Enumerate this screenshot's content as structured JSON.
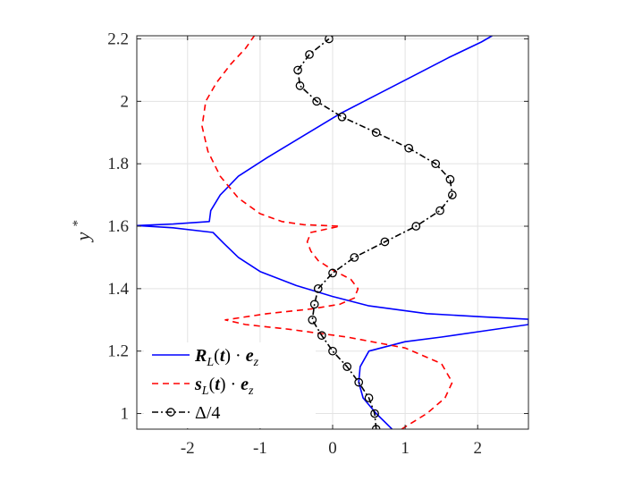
{
  "chart_data": {
    "type": "line",
    "title": "",
    "xlabel": "",
    "ylabel": "y*",
    "xlim": [
      -2.7,
      2.7
    ],
    "ylim": [
      0.95,
      2.21
    ],
    "xticks": [
      -2,
      -1,
      0,
      1,
      2
    ],
    "yticks": [
      1,
      1.2,
      1.4,
      1.6,
      1.8,
      2,
      2.2
    ],
    "xtick_labels": [
      "-2",
      "-1",
      "0",
      "1",
      "2"
    ],
    "ytick_labels": [
      "1",
      "1.2",
      "1.4",
      "1.6",
      "1.8",
      "2",
      "2.2"
    ],
    "grid": true,
    "legend_position": "bottom-left",
    "series": [
      {
        "name": "R_L(t) · e_z",
        "color": "#0000ff",
        "style": "solid",
        "points": [
          [
            0.82,
            0.95
          ],
          [
            0.6,
            1.0
          ],
          [
            0.42,
            1.05
          ],
          [
            0.36,
            1.1
          ],
          [
            0.38,
            1.15
          ],
          [
            0.5,
            1.2
          ],
          [
            1.0,
            1.23
          ],
          [
            1.5,
            1.245
          ],
          [
            2.1,
            1.265
          ],
          [
            2.7,
            1.285
          ],
          [
            2.7,
            1.302
          ],
          [
            2.05,
            1.31
          ],
          [
            1.3,
            1.32
          ],
          [
            0.5,
            1.345
          ],
          [
            0.0,
            1.375
          ],
          [
            -0.5,
            1.41
          ],
          [
            -1.0,
            1.455
          ],
          [
            -1.3,
            1.5
          ],
          [
            -1.5,
            1.545
          ],
          [
            -1.65,
            1.58
          ],
          [
            -2.2,
            1.595
          ],
          [
            -2.7,
            1.602
          ],
          [
            -2.2,
            1.607
          ],
          [
            -1.7,
            1.615
          ],
          [
            -1.68,
            1.65
          ],
          [
            -1.55,
            1.7
          ],
          [
            -1.3,
            1.76
          ],
          [
            -0.9,
            1.82
          ],
          [
            -0.4,
            1.89
          ],
          [
            0.1,
            1.96
          ],
          [
            0.6,
            2.02
          ],
          [
            1.1,
            2.08
          ],
          [
            1.6,
            2.14
          ],
          [
            2.05,
            2.19
          ],
          [
            2.2,
            2.21
          ]
        ]
      },
      {
        "name": "s_L(t) · e_z",
        "color": "#ff0000",
        "style": "dashed",
        "points": [
          [
            0.95,
            0.95
          ],
          [
            1.3,
            1.0
          ],
          [
            1.55,
            1.05
          ],
          [
            1.65,
            1.1
          ],
          [
            1.5,
            1.16
          ],
          [
            1.0,
            1.21
          ],
          [
            0.2,
            1.245
          ],
          [
            -0.6,
            1.27
          ],
          [
            -1.2,
            1.285
          ],
          [
            -1.48,
            1.3
          ],
          [
            -0.9,
            1.32
          ],
          [
            -0.3,
            1.335
          ],
          [
            0.1,
            1.35
          ],
          [
            0.3,
            1.37
          ],
          [
            0.35,
            1.4
          ],
          [
            0.25,
            1.43
          ],
          [
            0.0,
            1.46
          ],
          [
            -0.2,
            1.49
          ],
          [
            -0.3,
            1.52
          ],
          [
            -0.35,
            1.55
          ],
          [
            -0.3,
            1.58
          ],
          [
            0.1,
            1.6
          ],
          [
            -0.4,
            1.605
          ],
          [
            -0.7,
            1.615
          ],
          [
            -1.0,
            1.64
          ],
          [
            -1.3,
            1.69
          ],
          [
            -1.55,
            1.76
          ],
          [
            -1.72,
            1.84
          ],
          [
            -1.8,
            1.92
          ],
          [
            -1.75,
            2.0
          ],
          [
            -1.6,
            2.06
          ],
          [
            -1.4,
            2.12
          ],
          [
            -1.2,
            2.17
          ],
          [
            -1.08,
            2.21
          ]
        ]
      },
      {
        "name": "Δ/4",
        "color": "#000000",
        "style": "dashdot",
        "marker": "circle",
        "points": [
          [
            0.6,
            0.95
          ],
          [
            0.58,
            1.0
          ],
          [
            0.5,
            1.05
          ],
          [
            0.36,
            1.1
          ],
          [
            0.2,
            1.15
          ],
          [
            0.0,
            1.2
          ],
          [
            -0.15,
            1.25
          ],
          [
            -0.28,
            1.3
          ],
          [
            -0.25,
            1.35
          ],
          [
            -0.2,
            1.4
          ],
          [
            0.0,
            1.45
          ],
          [
            0.3,
            1.5
          ],
          [
            0.72,
            1.55
          ],
          [
            1.15,
            1.6
          ],
          [
            1.48,
            1.65
          ],
          [
            1.65,
            1.7
          ],
          [
            1.62,
            1.75
          ],
          [
            1.42,
            1.8
          ],
          [
            1.05,
            1.85
          ],
          [
            0.6,
            1.9
          ],
          [
            0.13,
            1.95
          ],
          [
            -0.22,
            2.0
          ],
          [
            -0.45,
            2.05
          ],
          [
            -0.48,
            2.1
          ],
          [
            -0.32,
            2.15
          ],
          [
            -0.05,
            2.2
          ]
        ]
      }
    ]
  }
}
